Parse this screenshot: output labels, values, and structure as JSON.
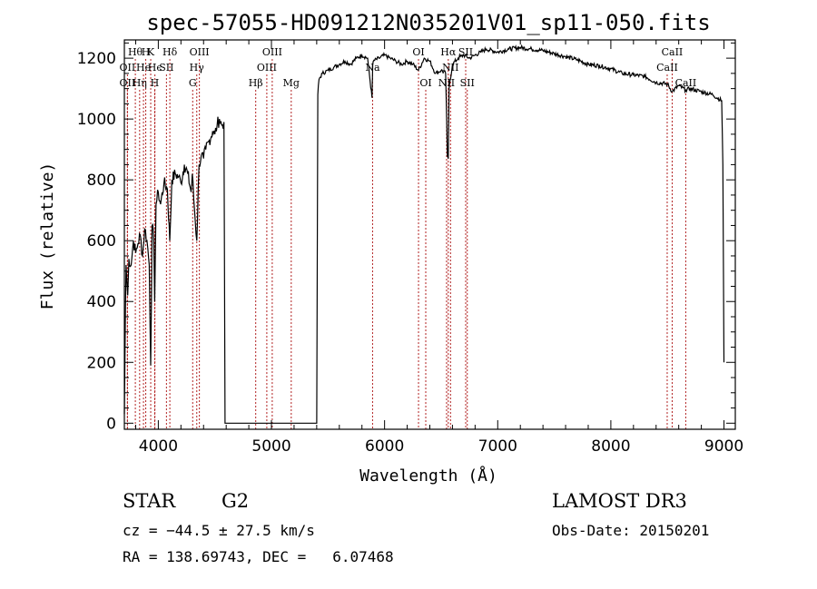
{
  "chart_data": {
    "type": "line",
    "title": "spec-57055-HD091212N035201V01_sp11-050.fits",
    "xlabel": "Wavelength (Å)",
    "ylabel": "Flux (relative)",
    "xlim": [
      3700,
      9100
    ],
    "ylim": [
      -20,
      1260
    ],
    "xticks": [
      4000,
      5000,
      6000,
      7000,
      8000,
      9000
    ],
    "yticks": [
      0,
      200,
      400,
      600,
      800,
      1000,
      1200
    ],
    "grid": false,
    "series": [
      {
        "x": [
          3700,
          3705,
          3710,
          3715,
          3720,
          3730,
          3740,
          3760,
          3780,
          3800,
          3820,
          3840,
          3860,
          3880,
          3900,
          3920,
          3933,
          3945,
          3960,
          3968,
          3980,
          4000,
          4020,
          4050,
          4080,
          4101,
          4120,
          4150,
          4180,
          4200,
          4230,
          4260,
          4290,
          4300,
          4320,
          4340,
          4360,
          4380,
          4400,
          4420,
          4450,
          4480,
          4500,
          4520,
          4540,
          4560,
          4580,
          4590,
          4600,
          5400,
          5410,
          5420,
          5450,
          5500,
          5550,
          5600,
          5650,
          5700,
          5750,
          5800,
          5850,
          5889,
          5895,
          5900,
          5950,
          6000,
          6050,
          6100,
          6150,
          6200,
          6250,
          6300,
          6350,
          6400,
          6450,
          6500,
          6540,
          6555,
          6563,
          6570,
          6600,
          6650,
          6700,
          6750,
          6800,
          6850,
          6900,
          7000,
          7100,
          7200,
          7300,
          7400,
          7500,
          7600,
          7700,
          7800,
          7900,
          8000,
          8100,
          8200,
          8300,
          8400,
          8500,
          8542,
          8600,
          8662,
          8700,
          8800,
          8900,
          8980,
          8990,
          9000
        ],
        "y": [
          30,
          200,
          380,
          520,
          480,
          420,
          540,
          520,
          600,
          560,
          590,
          620,
          550,
          640,
          600,
          520,
          190,
          650,
          600,
          400,
          720,
          760,
          720,
          790,
          770,
          600,
          800,
          820,
          810,
          790,
          850,
          820,
          760,
          820,
          700,
          600,
          850,
          880,
          870,
          900,
          930,
          960,
          950,
          980,
          1000,
          980,
          990,
          0,
          0,
          0,
          1080,
          1130,
          1150,
          1160,
          1170,
          1180,
          1190,
          1180,
          1200,
          1210,
          1200,
          1070,
          1180,
          1190,
          1200,
          1210,
          1200,
          1190,
          1180,
          1190,
          1180,
          1160,
          1200,
          1190,
          1150,
          1160,
          1150,
          880,
          870,
          1100,
          1180,
          1200,
          1210,
          1200,
          1210,
          1220,
          1230,
          1220,
          1230,
          1235,
          1230,
          1225,
          1215,
          1205,
          1195,
          1180,
          1175,
          1165,
          1150,
          1145,
          1140,
          1120,
          1115,
          1090,
          1110,
          1095,
          1100,
          1090,
          1080,
          1060,
          850,
          200
        ]
      }
    ],
    "lines": [
      {
        "wave": 3727,
        "label": "OII",
        "row": 2
      },
      {
        "wave": 3727,
        "label": "OII",
        "row": 3
      },
      {
        "wave": 3797,
        "label": "Hθ",
        "row": 1
      },
      {
        "wave": 3835,
        "label": "Hη",
        "row": 3
      },
      {
        "wave": 3869,
        "label": "He",
        "row": 2
      },
      {
        "wave": 3889,
        "label": "H",
        "row": 1
      },
      {
        "wave": 3933,
        "label": "K",
        "row": 1
      },
      {
        "wave": 3968,
        "label": "H",
        "row": 3
      },
      {
        "wave": 3970,
        "label": "Hϵ",
        "row": 2
      },
      {
        "wave": 4072,
        "label": "SII",
        "row": 2
      },
      {
        "wave": 4102,
        "label": "Hδ",
        "row": 1
      },
      {
        "wave": 4304,
        "label": "G",
        "row": 3
      },
      {
        "wave": 4340,
        "label": "Hγ",
        "row": 2
      },
      {
        "wave": 4363,
        "label": "OIII",
        "row": 1
      },
      {
        "wave": 4861,
        "label": "Hβ",
        "row": 3
      },
      {
        "wave": 4959,
        "label": "OIII",
        "row": 2
      },
      {
        "wave": 5007,
        "label": "OIII",
        "row": 1
      },
      {
        "wave": 5175,
        "label": "Mg",
        "row": 3
      },
      {
        "wave": 5894,
        "label": "Na",
        "row": 2
      },
      {
        "wave": 6300,
        "label": "OI",
        "row": 1
      },
      {
        "wave": 6364,
        "label": "OI",
        "row": 3
      },
      {
        "wave": 6548,
        "label": "NII",
        "row": 3
      },
      {
        "wave": 6563,
        "label": "Hα",
        "row": 1
      },
      {
        "wave": 6583,
        "label": "NII",
        "row": 2
      },
      {
        "wave": 6717,
        "label": "SII",
        "row": 1
      },
      {
        "wave": 6731,
        "label": "SII",
        "row": 3
      },
      {
        "wave": 8498,
        "label": "CaII",
        "row": 2
      },
      {
        "wave": 8542,
        "label": "CaII",
        "row": 1
      },
      {
        "wave": 8662,
        "label": "CaII",
        "row": 3
      }
    ]
  },
  "info": {
    "class": "STAR",
    "subclass": "G2",
    "survey": "LAMOST DR3",
    "cz": "cz = −44.5 ± 27.5 km/s",
    "obsdate": "Obs-Date: 20150201",
    "coords": "RA = 138.69743, DEC =   6.07468"
  },
  "colors": {
    "spectrum": "#000000",
    "line_markers": "#b22222",
    "axes": "#000000"
  }
}
